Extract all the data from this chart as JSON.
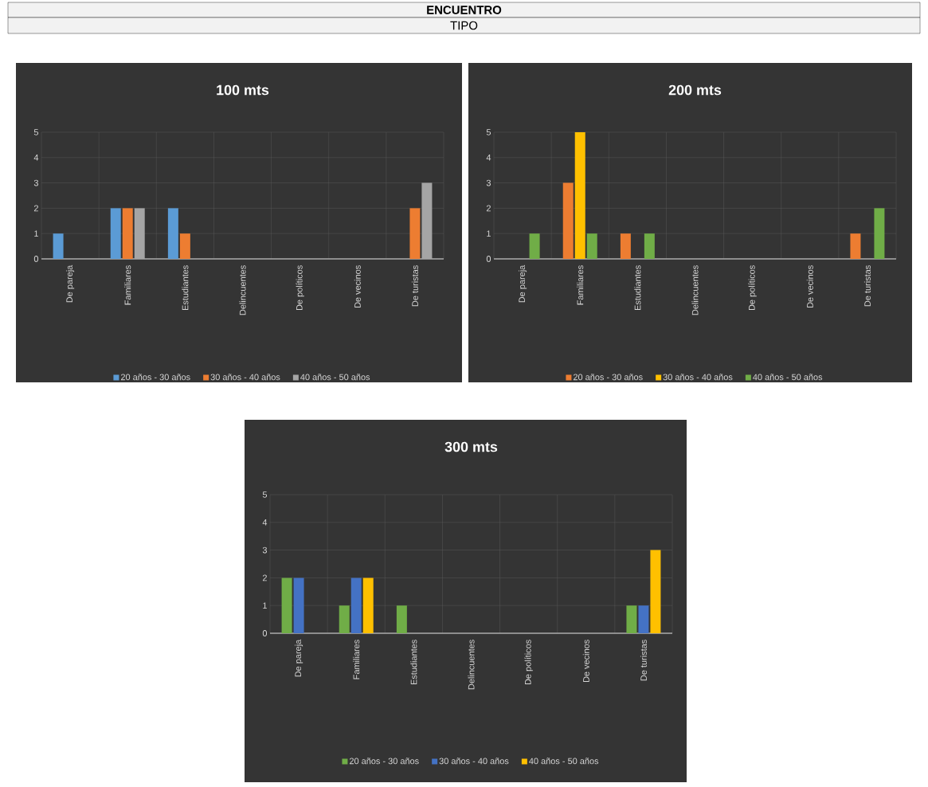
{
  "chart_data": [
    {
      "type": "bar",
      "title": "100 mts",
      "annotations": [
        "ENCUENTRO",
        "TIPO"
      ],
      "categories": [
        "De pareja",
        "Familiares",
        "Estudiantes",
        "Delincuentes",
        "De políticos",
        "De vecinos",
        "De turistas"
      ],
      "series": [
        {
          "name": "20 años - 30 años",
          "color": "#5b9bd5",
          "values": [
            1,
            2,
            2,
            0,
            0,
            0,
            0
          ]
        },
        {
          "name": "30 años - 40 años",
          "color": "#ed7d31",
          "values": [
            0,
            2,
            1,
            0,
            0,
            0,
            2
          ]
        },
        {
          "name": "40 años - 50 años",
          "color": "#a5a5a5",
          "values": [
            0,
            2,
            0,
            0,
            0,
            0,
            3
          ]
        }
      ],
      "ylim": [
        0,
        5
      ],
      "yticks": [
        0,
        1,
        2,
        3,
        4,
        5
      ],
      "grid": true,
      "legend": "bottom"
    },
    {
      "type": "bar",
      "title": "200 mts",
      "categories": [
        "De pareja",
        "Familiares",
        "Estudiantes",
        "Delincuentes",
        "De políticos",
        "De vecinos",
        "De turistas"
      ],
      "series": [
        {
          "name": "20 años - 30 años",
          "color": "#ed7d31",
          "values": [
            0,
            3,
            1,
            0,
            0,
            0,
            1
          ]
        },
        {
          "name": "30 años - 40 años",
          "color": "#ffc000",
          "values": [
            0,
            5,
            0,
            0,
            0,
            0,
            0
          ]
        },
        {
          "name": "40 años - 50 años",
          "color": "#70ad47",
          "values": [
            1,
            1,
            1,
            0,
            0,
            0,
            2
          ]
        }
      ],
      "ylim": [
        0,
        5
      ],
      "yticks": [
        0,
        1,
        2,
        3,
        4,
        5
      ],
      "grid": true,
      "legend": "bottom"
    },
    {
      "type": "bar",
      "title": "300 mts",
      "categories": [
        "De pareja",
        "Familiares",
        "Estudiantes",
        "Delincuentes",
        "De políticos",
        "De vecinos",
        "De turistas"
      ],
      "series": [
        {
          "name": "20 años - 30 años",
          "color": "#70ad47",
          "values": [
            2,
            1,
            1,
            0,
            0,
            0,
            1
          ]
        },
        {
          "name": "30 años - 40 años",
          "color": "#4472c4",
          "values": [
            2,
            2,
            0,
            0,
            0,
            0,
            1
          ]
        },
        {
          "name": "40 años - 50 años",
          "color": "#ffc000",
          "values": [
            0,
            2,
            0,
            0,
            0,
            0,
            3
          ]
        }
      ],
      "ylim": [
        0,
        5
      ],
      "yticks": [
        0,
        1,
        2,
        3,
        4,
        5
      ],
      "grid": true,
      "legend": "bottom"
    }
  ]
}
